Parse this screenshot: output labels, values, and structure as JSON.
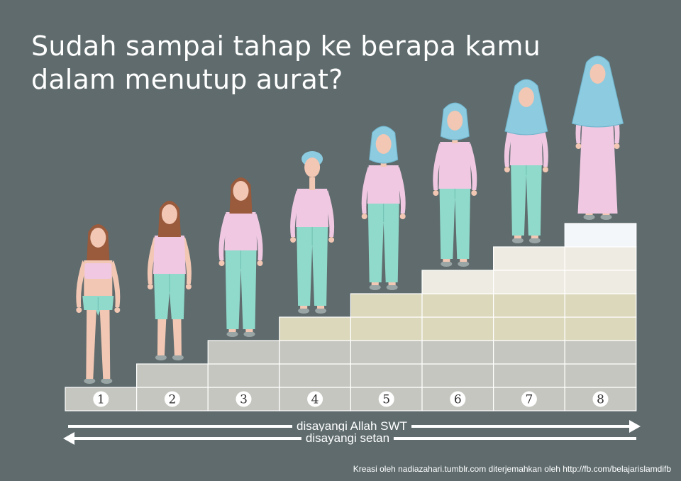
{
  "title": {
    "line1": "Sudah sampai tahap ke berapa kamu",
    "line2": "dalam menutup aurat?"
  },
  "steps": [
    "1",
    "2",
    "3",
    "4",
    "5",
    "6",
    "7",
    "8"
  ],
  "arrows": {
    "right_label": "disayangi Allah SWT",
    "left_label": "disayangi setan"
  },
  "credit": "Kreasi oleh nadiazahari.tumblr.com diterjemahkan oleh http://fb.com/belajarislamdifb",
  "colors": {
    "background": "#5f6b6d",
    "skin": "#f2c7b3",
    "hair": "#9a5a3c",
    "top": "#f0c8e2",
    "pants": "#8fdacb",
    "hijab": "#8ccbe0",
    "stair_gray": "#c6c6c0",
    "stair_beige": "#dcd8bc",
    "stair_cream": "#eeebe2",
    "stair_top": "#f3f7fa"
  }
}
